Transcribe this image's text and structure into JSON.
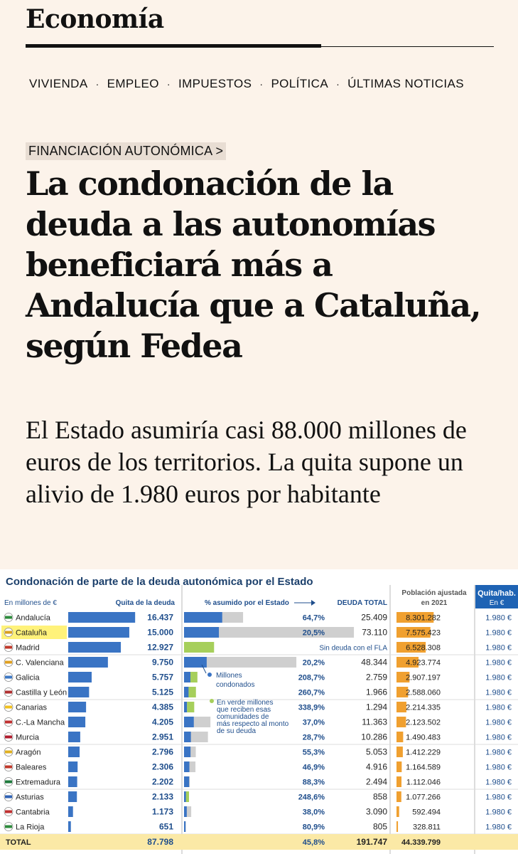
{
  "header": {
    "section_title": "Economía",
    "nav": [
      "VIVIENDA",
      "EMPLEO",
      "IMPUESTOS",
      "POLÍTICA",
      "ÚLTIMAS NOTICIAS"
    ],
    "nav_separator": "·"
  },
  "article": {
    "kicker": "FINANCIACIÓN AUTONÓMICA >",
    "headline": "La condonación de la deuda a las autonomías beneficiará más a Andalucía que a Cataluña, según Fedea",
    "subtitle": "El Estado asumiría casi 88.000 millones de euros de los territorios. La quita supone un alivio de 1.980 euros por habitante"
  },
  "infographic": {
    "title": "Condonación de parte de la deuda autonómica por el Estado",
    "headers": {
      "units": "En millones de €",
      "quita": "Quita de la deuda",
      "pct": "% asumido por el Estado",
      "deuda": "DEUDA TOTAL",
      "pob_1": "Población ajustada",
      "pob_2": "en 2021",
      "qh_1": "Quita/hab.",
      "qh_2": "En €"
    },
    "notes": {
      "millones": [
        "Millones",
        "condonados"
      ],
      "verde": [
        "En verde millones",
        "que reciben esas",
        "comunidades de",
        "más respecto al monto",
        "de su deuda"
      ],
      "sin_deuda": "Sin deuda con el FLA"
    },
    "rows": [
      {
        "name": "Andalucía",
        "quita": 16437,
        "quita_label": "16.437",
        "pct_label": "64,7%",
        "deuda": 25409,
        "deuda_label": "25.409",
        "pob": 8301282,
        "pob_label": "8.301.282",
        "qh": "1.980 €",
        "highlight": false
      },
      {
        "name": "Cataluña",
        "quita": 15000,
        "quita_label": "15.000",
        "pct_label": "20,5%",
        "deuda": 73110,
        "deuda_label": "73.110",
        "pob": 7575423,
        "pob_label": "7.575.423",
        "qh": "1.980 €",
        "highlight": true
      },
      {
        "name": "Madrid",
        "quita": 12927,
        "quita_label": "12.927",
        "pct_label": "",
        "deuda": 0,
        "deuda_label": "",
        "pob": 6528308,
        "pob_label": "6.528.308",
        "qh": "1.980 €",
        "highlight": false,
        "sin_deuda": true
      },
      {
        "name": "C. Valenciana",
        "quita": 9750,
        "quita_label": "9.750",
        "pct_label": "20,2%",
        "deuda": 48344,
        "deuda_label": "48.344",
        "pob": 4923774,
        "pob_label": "4.923.774",
        "qh": "1.980 €",
        "highlight": false
      },
      {
        "name": "Galicia",
        "quita": 5757,
        "quita_label": "5.757",
        "pct_label": "208,7%",
        "deuda": 2759,
        "deuda_label": "2.759",
        "pob": 2907197,
        "pob_label": "2.907.197",
        "qh": "1.980 €",
        "highlight": false
      },
      {
        "name": "Castilla y León",
        "quita": 5125,
        "quita_label": "5.125",
        "pct_label": "260,7%",
        "deuda": 1966,
        "deuda_label": "1.966",
        "pob": 2588060,
        "pob_label": "2.588.060",
        "qh": "1.980 €",
        "highlight": false
      },
      {
        "name": "Canarias",
        "quita": 4385,
        "quita_label": "4.385",
        "pct_label": "338,9%",
        "deuda": 1294,
        "deuda_label": "1.294",
        "pob": 2214335,
        "pob_label": "2.214.335",
        "qh": "1.980 €",
        "highlight": false
      },
      {
        "name": "C.-La Mancha",
        "quita": 4205,
        "quita_label": "4.205",
        "pct_label": "37,0%",
        "deuda": 11363,
        "deuda_label": "11.363",
        "pob": 2123502,
        "pob_label": "2.123.502",
        "qh": "1.980 €",
        "highlight": false
      },
      {
        "name": "Murcia",
        "quita": 2951,
        "quita_label": "2.951",
        "pct_label": "28,7%",
        "deuda": 10286,
        "deuda_label": "10.286",
        "pob": 1490483,
        "pob_label": "1.490.483",
        "qh": "1.980 €",
        "highlight": false
      },
      {
        "name": "Aragón",
        "quita": 2796,
        "quita_label": "2.796",
        "pct_label": "55,3%",
        "deuda": 5053,
        "deuda_label": "5.053",
        "pob": 1412229,
        "pob_label": "1.412.229",
        "qh": "1.980 €",
        "highlight": false
      },
      {
        "name": "Baleares",
        "quita": 2306,
        "quita_label": "2.306",
        "pct_label": "46,9%",
        "deuda": 4916,
        "deuda_label": "4.916",
        "pob": 1164589,
        "pob_label": "1.164.589",
        "qh": "1.980 €",
        "highlight": false
      },
      {
        "name": "Extremadura",
        "quita": 2202,
        "quita_label": "2.202",
        "pct_label": "88,3%",
        "deuda": 2494,
        "deuda_label": "2.494",
        "pob": 1112046,
        "pob_label": "1.112.046",
        "qh": "1.980 €",
        "highlight": false
      },
      {
        "name": "Asturias",
        "quita": 2133,
        "quita_label": "2.133",
        "pct_label": "248,6%",
        "deuda": 858,
        "deuda_label": "858",
        "pob": 1077266,
        "pob_label": "1.077.266",
        "qh": "1.980 €",
        "highlight": false
      },
      {
        "name": "Cantabria",
        "quita": 1173,
        "quita_label": "1.173",
        "pct_label": "38,0%",
        "deuda": 3090,
        "deuda_label": "3.090",
        "pob": 592494,
        "pob_label": "592.494",
        "qh": "1.980 €",
        "highlight": false
      },
      {
        "name": "La Rioja",
        "quita": 651,
        "quita_label": "651",
        "pct_label": "80,9%",
        "deuda": 805,
        "deuda_label": "805",
        "pob": 328811,
        "pob_label": "328.811",
        "qh": "1.980 €",
        "highlight": false
      }
    ],
    "total": {
      "name": "TOTAL",
      "quita_label": "87.798",
      "pct_label": "45,8%",
      "deuda_label": "191.747",
      "pob_label": "44.339.799"
    },
    "axis_quita": [
      "0",
      "10.000",
      "20.000 mill. €"
    ],
    "axis_deuda": [
      "0",
      "20.000",
      "40.000 mill. €"
    ],
    "axis_pob": [
      "0",
      "10 mill. hab."
    ],
    "colors": {
      "title": "#1b3f6b",
      "bar_blue": "#3a74c4",
      "bar_grey": "#cfcfcf",
      "bar_green": "#a6cf5b",
      "bar_orange": "#f0a030",
      "highlight": "#fff27a",
      "header_bg": "#1e63b4"
    },
    "chart_data": {
      "type": "bar",
      "categories": [
        "Andalucía",
        "Cataluña",
        "Madrid",
        "C. Valenciana",
        "Galicia",
        "Castilla y León",
        "Canarias",
        "C.-La Mancha",
        "Murcia",
        "Aragón",
        "Baleares",
        "Extremadura",
        "Asturias",
        "Cantabria",
        "La Rioja"
      ],
      "series": [
        {
          "name": "Quita de la deuda",
          "values": [
            16437,
            15000,
            12927,
            9750,
            5757,
            5125,
            4385,
            4205,
            2951,
            2796,
            2306,
            2202,
            2133,
            1173,
            651
          ]
        },
        {
          "name": "DEUDA TOTAL",
          "values": [
            25409,
            73110,
            0,
            48344,
            2759,
            1966,
            1294,
            11363,
            10286,
            5053,
            4916,
            2494,
            858,
            3090,
            805
          ]
        },
        {
          "name": "Población ajustada en 2021",
          "values": [
            8301282,
            7575423,
            6528308,
            4923774,
            2907197,
            2588060,
            2214335,
            2123502,
            1490483,
            1412229,
            1164589,
            1112046,
            1077266,
            592494,
            328811
          ]
        }
      ],
      "title": "Condonación de parte de la deuda autonómica por el Estado",
      "xlabel": "",
      "ylabel": ""
    }
  }
}
